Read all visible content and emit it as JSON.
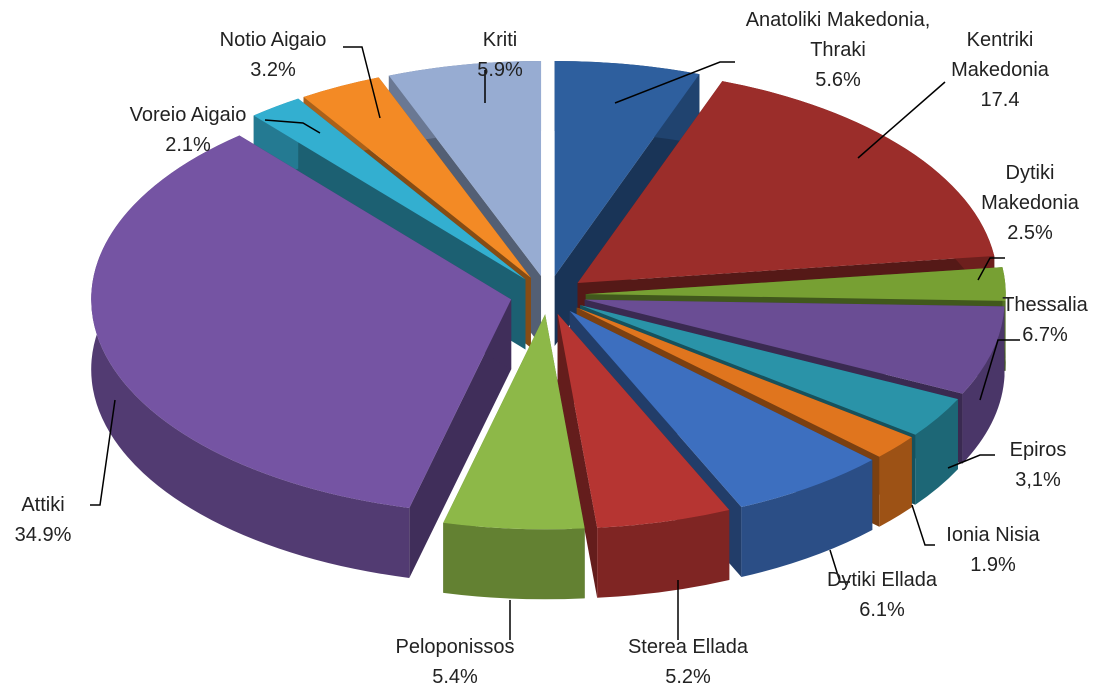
{
  "chart_data": {
    "type": "pie3d",
    "categories": [
      "Anatoliki Makedonia, Thraki",
      "Kentriki Makedonia",
      "Dytiki Makedonia",
      "Thessalia",
      "Epiros",
      "Ionia Nisia",
      "Dytiki Ellada",
      "Sterea Ellada",
      "Peloponissos",
      "Attiki",
      "Voreio Aigaio",
      "Notio Aigaio",
      "Kriti"
    ],
    "values": [
      5.6,
      17.4,
      2.5,
      6.7,
      3.1,
      1.9,
      6.1,
      5.2,
      5.4,
      34.9,
      2.1,
      3.2,
      5.9
    ],
    "value_labels": [
      "5.6%",
      "17.4",
      "2.5%",
      "6.7%",
      "3,1%",
      "1.9%",
      "6.1%",
      "5.2%",
      "5.4%",
      "34.9%",
      "2.1%",
      "3.2%",
      "5.9%"
    ],
    "colors": [
      "#2e5f9e",
      "#9b2d2a",
      "#77a033",
      "#6a4d94",
      "#2a93a8",
      "#e0751e",
      "#3d6fbf",
      "#b63532",
      "#8db848",
      "#7554a3",
      "#33afd0",
      "#f38a25",
      "#97acd2"
    ]
  }
}
